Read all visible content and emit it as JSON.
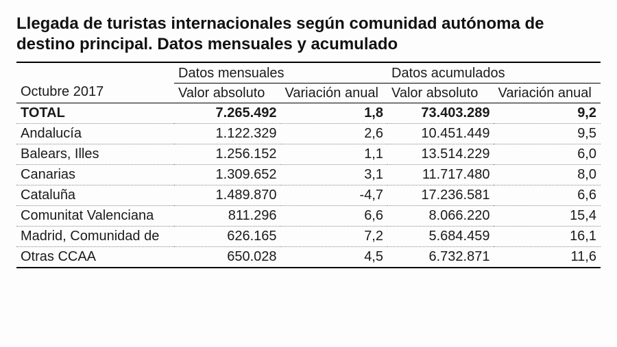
{
  "title": "Llegada de turistas internacionales según comunidad autónoma de destino principal. Datos mensuales y acumulado",
  "period": "Octubre 2017",
  "group_monthly": "Datos mensuales",
  "group_cumulative": "Datos acumulados",
  "col_abs": "Valor absoluto",
  "col_var": "Variación anual",
  "total_label": "TOTAL",
  "total": {
    "m_abs": "7.265.492",
    "m_var": "1,8",
    "c_abs": "73.403.289",
    "c_var": "9,2"
  },
  "rows": [
    {
      "region": "Andalucía",
      "m_abs": "1.122.329",
      "m_var": "2,6",
      "c_abs": "10.451.449",
      "c_var": "9,5"
    },
    {
      "region": "Balears, Illes",
      "m_abs": "1.256.152",
      "m_var": "1,1",
      "c_abs": "13.514.229",
      "c_var": "6,0"
    },
    {
      "region": "Canarias",
      "m_abs": "1.309.652",
      "m_var": "3,1",
      "c_abs": "11.717.480",
      "c_var": "8,0"
    },
    {
      "region": "Cataluña",
      "m_abs": "1.489.870",
      "m_var": "-4,7",
      "c_abs": "17.236.581",
      "c_var": "6,6"
    },
    {
      "region": "Comunitat Valenciana",
      "m_abs": "811.296",
      "m_var": "6,6",
      "c_abs": "8.066.220",
      "c_var": "15,4"
    },
    {
      "region": "Madrid, Comunidad de",
      "m_abs": "626.165",
      "m_var": "7,2",
      "c_abs": "5.684.459",
      "c_var": "16,1"
    },
    {
      "region": "Otras CCAA",
      "m_abs": "650.028",
      "m_var": "4,5",
      "c_abs": "6.732.871",
      "c_var": "11,6"
    }
  ]
}
